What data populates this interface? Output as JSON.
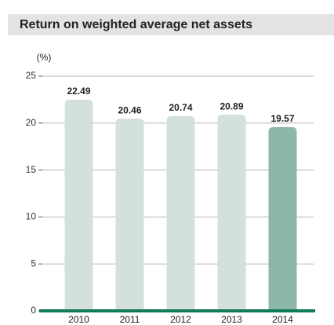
{
  "chart_data": {
    "type": "bar",
    "title": "Return on weighted average net assets",
    "y_label": "(%)",
    "categories": [
      "2010",
      "2011",
      "2012",
      "2013",
      "2014"
    ],
    "values": [
      22.49,
      20.46,
      20.74,
      20.89,
      19.57
    ],
    "colors": [
      "#d3e0dc",
      "#d3e0dc",
      "#d3e0dc",
      "#d3e0dc",
      "#8db7aa"
    ],
    "ylim": [
      0,
      25
    ],
    "yticks": [
      0,
      5,
      10,
      15,
      20,
      25
    ],
    "grid": true
  }
}
